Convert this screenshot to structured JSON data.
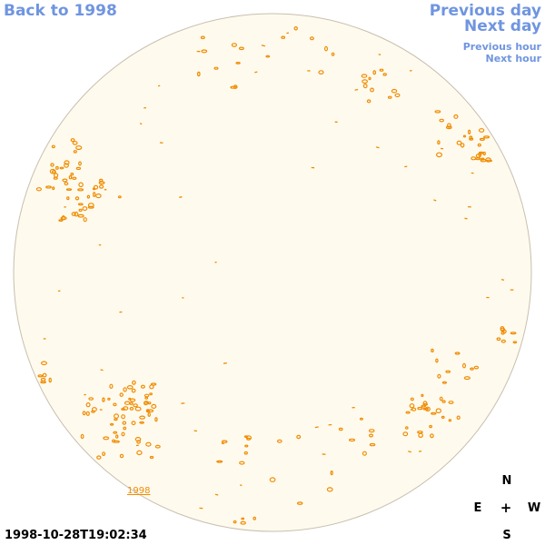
{
  "nav": {
    "back_label": "Back to 1998",
    "prev_day_label": "Previous day",
    "next_day_label": "Next day",
    "prev_hour_label": "Previous hour",
    "next_hour_label": "Next hour"
  },
  "sun": {
    "year_tag": "1998",
    "timestamp": "1998-10-28T19:02:34",
    "disk_fill": "#fffaee",
    "disk_stroke": "#c8bfaf",
    "marker_color": "#ef8c00"
  },
  "compass": {
    "north": "N",
    "east": "E",
    "center": "+",
    "west": "W",
    "south": "S"
  },
  "colors": {
    "link": "#6f95e0",
    "accent": "#ef8c00"
  }
}
